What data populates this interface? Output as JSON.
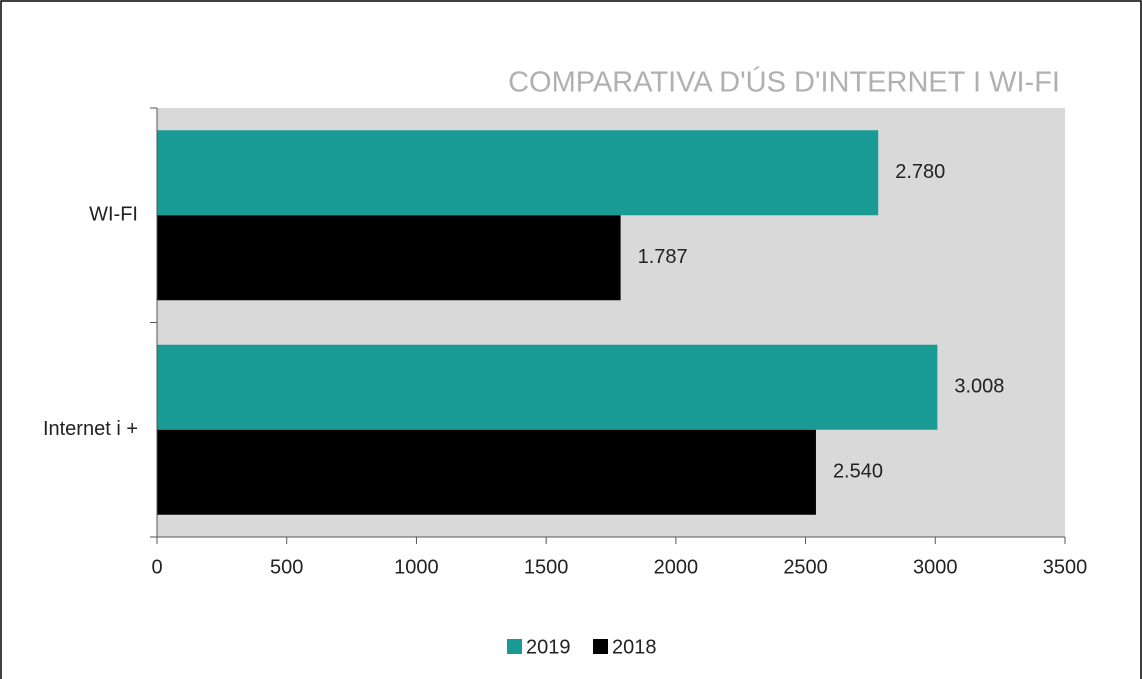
{
  "chart_data": {
    "type": "bar",
    "orientation": "horizontal",
    "title": "COMPARATIVA D'ÚS D'INTERNET I WI-FI",
    "categories": [
      "WI-FI",
      "Internet i +"
    ],
    "series": [
      {
        "name": "2019",
        "color": "#1a9a94",
        "values": [
          2780,
          3008
        ],
        "value_labels": [
          "2.780",
          "3.008"
        ]
      },
      {
        "name": "2018",
        "color": "#000000",
        "values": [
          1787,
          2540
        ],
        "value_labels": [
          "1.787",
          "2.540"
        ]
      }
    ],
    "xlim": [
      0,
      3500
    ],
    "xticks": [
      0,
      500,
      1000,
      1500,
      2000,
      2500,
      3000,
      3500
    ],
    "plot_background": "#d9d9d9",
    "legend": "bottom"
  }
}
